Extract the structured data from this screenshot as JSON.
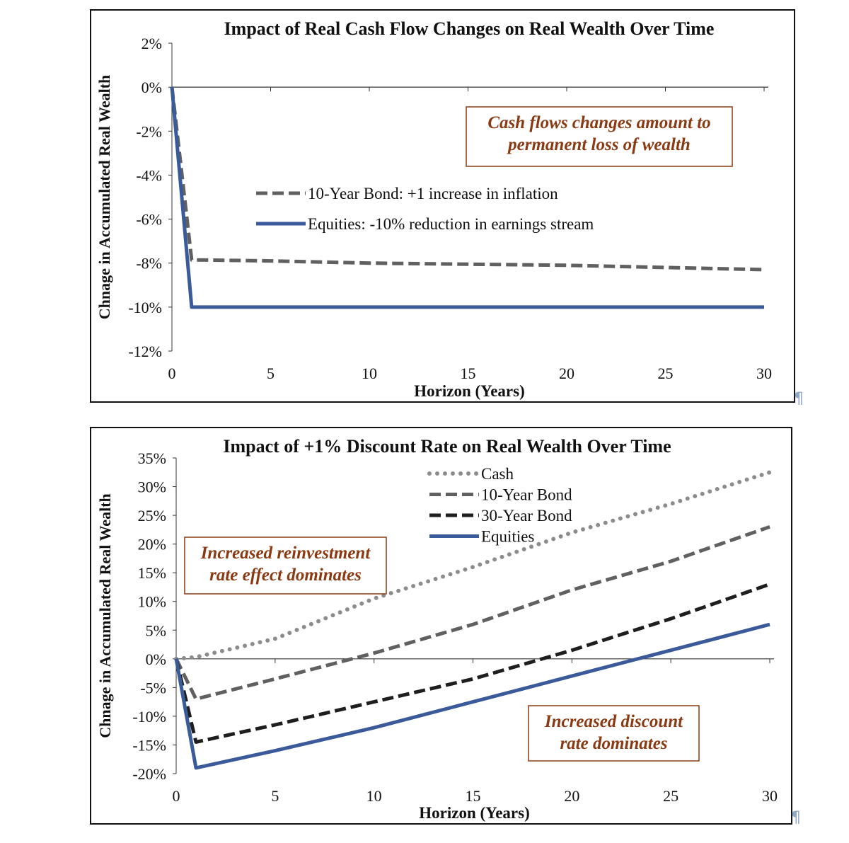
{
  "chart_data": [
    {
      "type": "line",
      "title": "Impact of  Real Cash Flow Changes on Real Wealth Over Time",
      "xlabel": "Horizon (Years)",
      "ylabel": "Chnage in Accumulated Real Wealth",
      "xlim": [
        0,
        30
      ],
      "ylim": [
        -12,
        2
      ],
      "xticks": [
        "0",
        "5",
        "10",
        "15",
        "20",
        "25",
        "30"
      ],
      "yticks": [
        "2%",
        "0%",
        "-2%",
        "-4%",
        "-6%",
        "-8%",
        "-10%",
        "-12%"
      ],
      "annotation": [
        "Cash flows changes amount to",
        "permanent loss of wealth"
      ],
      "legend": "center",
      "series": [
        {
          "name": "10-Year Bond: +1 increase in inflation",
          "style": "dashed",
          "color": "#606060",
          "x": [
            0,
            1,
            5,
            10,
            15,
            20,
            25,
            30
          ],
          "y": [
            0,
            -7.85,
            -7.9,
            -8.0,
            -8.05,
            -8.1,
            -8.2,
            -8.3
          ]
        },
        {
          "name": "Equities: -10% reduction in earnings stream",
          "style": "solid",
          "color": "#3a5a9a",
          "x": [
            0,
            1,
            30
          ],
          "y": [
            0,
            -10,
            -10
          ]
        }
      ]
    },
    {
      "type": "line",
      "title": "Impact of +1% Discount Rate on Real Wealth Over Time",
      "xlabel": "Horizon (Years)",
      "ylabel": "Chnage in Accumulated Real Wealth",
      "xlim": [
        0,
        30
      ],
      "ylim": [
        -20,
        35
      ],
      "xticks": [
        "0",
        "5",
        "10",
        "15",
        "20",
        "25",
        "30"
      ],
      "yticks": [
        "35%",
        "30%",
        "25%",
        "20%",
        "15%",
        "10%",
        "5%",
        "0%",
        "-5%",
        "-10%",
        "-15%",
        "-20%"
      ],
      "annotations": [
        [
          "Increased reinvestment",
          "rate effect dominates"
        ],
        [
          "Increased discount",
          "rate dominates"
        ]
      ],
      "legend": "top-right",
      "series": [
        {
          "name": "Cash",
          "style": "dotted",
          "color": "#8c8c8c",
          "x": [
            0,
            1,
            5,
            10,
            15,
            20,
            25,
            30
          ],
          "y": [
            0,
            0.3,
            3.5,
            10.5,
            16,
            22,
            27,
            32.5
          ]
        },
        {
          "name": "10-Year Bond",
          "style": "dashed",
          "color": "#606060",
          "x": [
            0,
            1,
            5,
            10,
            15,
            20,
            25,
            30
          ],
          "y": [
            0,
            -7,
            -3.5,
            1,
            6,
            12,
            17,
            23
          ]
        },
        {
          "name": "30-Year Bond",
          "style": "dashed",
          "color": "#1e1e1e",
          "x": [
            0,
            1,
            5,
            10,
            15,
            20,
            25,
            30
          ],
          "y": [
            0,
            -14.5,
            -11.5,
            -7.5,
            -3.5,
            1.5,
            7,
            13
          ]
        },
        {
          "name": "Equities",
          "style": "solid",
          "color": "#3a5a9a",
          "x": [
            0,
            1,
            5,
            10,
            15,
            20,
            25,
            30
          ],
          "y": [
            0,
            -19,
            -16,
            -12,
            -7.5,
            -3,
            1.5,
            6
          ]
        }
      ]
    }
  ]
}
